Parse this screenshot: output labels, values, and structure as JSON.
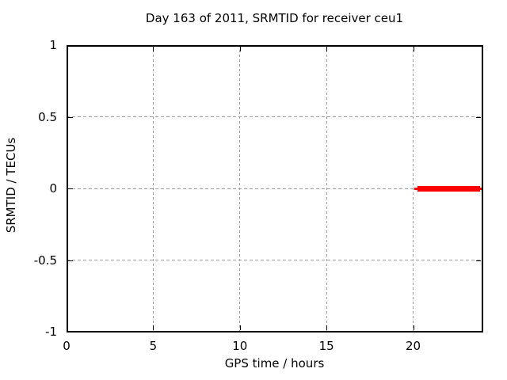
{
  "chart_data": {
    "type": "line",
    "title": "Day 163 of 2011, SRMTID for receiver ceu1",
    "xlabel": "GPS time / hours",
    "ylabel": "SRMTID / TECUs",
    "xlim": [
      0,
      24
    ],
    "ylim": [
      -1,
      1
    ],
    "xticks": [
      0,
      5,
      10,
      15,
      20
    ],
    "yticks": [
      1,
      0.5,
      0,
      -0.5,
      -1
    ],
    "grid": true,
    "grid_style": "dashed",
    "legend_position": "none",
    "colors": {
      "line": "#ff0000",
      "grid": "#a0a0a0",
      "axis": "#000000",
      "text": "#000000",
      "background": "#ffffff"
    },
    "series": [
      {
        "name": "SRMTID",
        "color": "#ff0000",
        "y_value": 0,
        "x_start": 20.05,
        "x_end": 24.0,
        "segments": [
          {
            "x1": 20.05,
            "x2": 20.25,
            "thickness": 3
          },
          {
            "x1": 20.25,
            "x2": 23.85,
            "thickness": 7
          },
          {
            "x1": 23.85,
            "x2": 24.0,
            "thickness": 3
          }
        ]
      }
    ]
  }
}
